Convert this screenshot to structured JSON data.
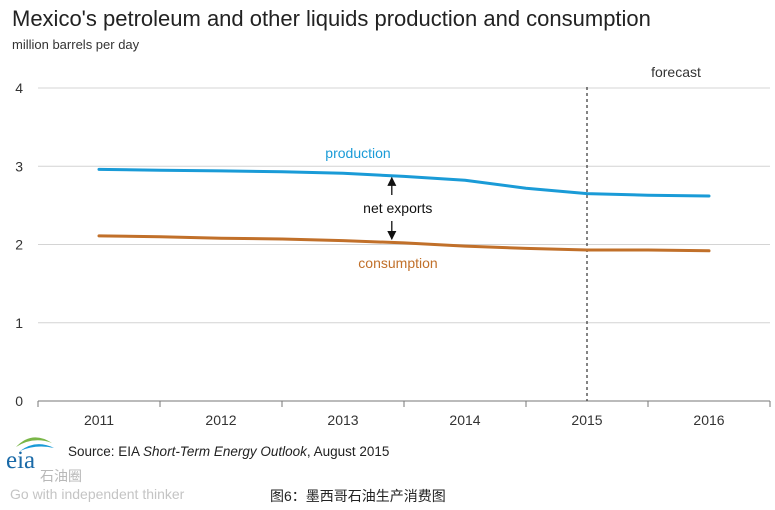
{
  "header": {
    "title": "Mexico's petroleum and other liquids production and consumption",
    "subtitle": "million barrels per day"
  },
  "chart_data": {
    "type": "line",
    "title": "Mexico's petroleum and other liquids production and consumption",
    "ylabel": "million barrels per day",
    "xlabel": "",
    "x": [
      "2011",
      "2012",
      "2013",
      "2014",
      "2015",
      "2016"
    ],
    "xlim": [
      2010.5,
      2016.5
    ],
    "ylim": [
      0,
      4
    ],
    "yticks": [
      0,
      1,
      2,
      3,
      4
    ],
    "grid": "horizontal",
    "forecast_start": 2015,
    "forecast_label": "forecast",
    "series": [
      {
        "name": "production",
        "color": "#1a9bd7",
        "points": [
          [
            2011,
            2.96
          ],
          [
            2011.5,
            2.95
          ],
          [
            2012,
            2.94
          ],
          [
            2012.5,
            2.93
          ],
          [
            2013,
            2.91
          ],
          [
            2013.5,
            2.87
          ],
          [
            2014,
            2.82
          ],
          [
            2014.5,
            2.72
          ],
          [
            2015,
            2.65
          ],
          [
            2015.5,
            2.63
          ],
          [
            2016,
            2.62
          ]
        ]
      },
      {
        "name": "consumption",
        "color": "#c1702a",
        "points": [
          [
            2011,
            2.11
          ],
          [
            2011.5,
            2.1
          ],
          [
            2012,
            2.08
          ],
          [
            2012.5,
            2.07
          ],
          [
            2013,
            2.05
          ],
          [
            2013.5,
            2.02
          ],
          [
            2014,
            1.98
          ],
          [
            2014.5,
            1.95
          ],
          [
            2015,
            1.93
          ],
          [
            2015.5,
            1.93
          ],
          [
            2016,
            1.92
          ]
        ]
      }
    ],
    "annotations": [
      {
        "text": "net exports",
        "type": "double-arrow",
        "x": 2013.4,
        "from_y": 2.88,
        "to_y": 2.03
      }
    ]
  },
  "footer": {
    "source_prefix": "Source: EIA ",
    "source_title": "Short-Term Energy Outlook",
    "source_suffix": ", August 2015",
    "logo_text": "eia",
    "watermark_line1": "石油圈",
    "watermark_line2": "Go with independent thinker",
    "caption": "图6：墨西哥石油生产消费图"
  }
}
